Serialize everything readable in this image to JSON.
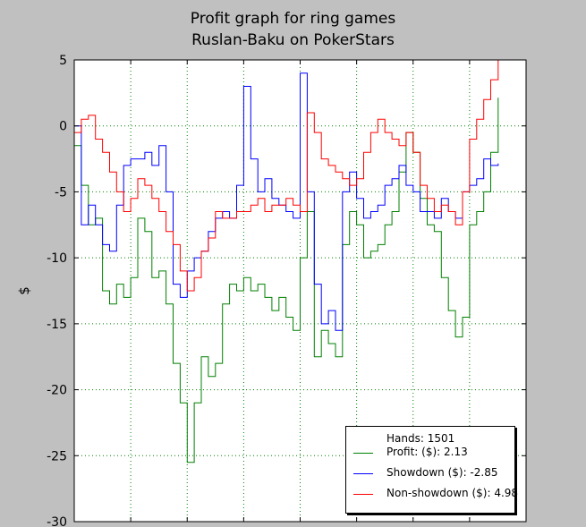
{
  "title": {
    "line1": "Profit graph for ring games",
    "line2": "Ruslan-Baku on PokerStars"
  },
  "colors": {
    "background": "#c0c0c0",
    "plot_background": "#ffffff",
    "grid": "#008000",
    "profit": "#008000",
    "showdown": "#0000ff",
    "non_showdown": "#ff0000"
  },
  "legend": {
    "hands": "Hands: 1501",
    "entries": [
      {
        "label": "Profit: ($): 2.13",
        "color": "#008000"
      },
      {
        "label": "Showdown ($): -2.85",
        "color": "#0000ff"
      },
      {
        "label": "Non-showdown ($): 4.98",
        "color": "#ff0000"
      }
    ]
  },
  "chart_data": {
    "type": "line",
    "title": "Profit graph for ring games\nRuslan-Baku on PokerStars",
    "xlabel": "",
    "ylabel": "$",
    "xlim": [
      0,
      1600
    ],
    "ylim": [
      -30,
      5
    ],
    "y_ticks": [
      "5",
      "0",
      "-5",
      "-10",
      "-15",
      "-20",
      "-25",
      "-30"
    ],
    "x_ticks": [
      0,
      200,
      400,
      600,
      800,
      1000,
      1200,
      1400,
      1600
    ],
    "x_tick_labels_visible": false,
    "grid": true,
    "legend_position": "bottom-right",
    "x": [
      0,
      25,
      50,
      75,
      100,
      125,
      150,
      175,
      200,
      225,
      250,
      275,
      300,
      325,
      350,
      375,
      400,
      425,
      450,
      475,
      500,
      525,
      550,
      575,
      600,
      625,
      650,
      675,
      700,
      725,
      750,
      775,
      800,
      825,
      850,
      875,
      900,
      925,
      950,
      975,
      1000,
      1025,
      1050,
      1075,
      1100,
      1125,
      1150,
      1175,
      1200,
      1225,
      1250,
      1275,
      1300,
      1325,
      1350,
      1375,
      1400,
      1425,
      1450,
      1475,
      1501
    ],
    "series": [
      {
        "name": "Profit: ($): 2.13",
        "color": "#008000",
        "values": [
          -1.5,
          -4.5,
          -7.5,
          -7.0,
          -12.5,
          -13.5,
          -12.0,
          -13.0,
          -11.5,
          -7.0,
          -8.0,
          -11.5,
          -11.0,
          -13.5,
          -18.0,
          -21.0,
          -25.5,
          -21.0,
          -17.5,
          -19.0,
          -18.0,
          -13.5,
          -12.0,
          -12.5,
          -11.5,
          -12.5,
          -12.0,
          -13.0,
          -14.0,
          -13.0,
          -14.5,
          -15.5,
          -10.0,
          -6.5,
          -17.5,
          -15.5,
          -16.5,
          -17.5,
          -9.0,
          -6.5,
          -7.5,
          -10.0,
          -9.5,
          -9.0,
          -7.5,
          -6.5,
          -3.5,
          -0.5,
          -2.0,
          -5.5,
          -7.5,
          -8.0,
          -11.5,
          -14.0,
          -16.0,
          -14.5,
          -7.5,
          -6.5,
          -5.0,
          -2.0,
          2.13
        ]
      },
      {
        "name": "Showdown ($): -2.85",
        "color": "#0000ff",
        "values": [
          0.0,
          -7.5,
          -6.0,
          -7.5,
          -9.0,
          -9.5,
          -6.0,
          -3.0,
          -2.5,
          -2.5,
          -2.0,
          -3.0,
          -1.5,
          -5.0,
          -12.0,
          -13.0,
          -11.0,
          -10.0,
          -9.5,
          -8.0,
          -7.0,
          -6.5,
          -7.0,
          -4.5,
          3.0,
          -2.5,
          -5.0,
          -4.0,
          -5.5,
          -6.0,
          -6.5,
          -7.0,
          4.0,
          -5.0,
          -12.0,
          -15.0,
          -14.0,
          -15.5,
          -5.0,
          -3.5,
          -5.5,
          -7.0,
          -6.5,
          -6.0,
          -4.5,
          -4.0,
          -3.0,
          -4.5,
          -5.0,
          -6.5,
          -6.5,
          -7.0,
          -5.5,
          -6.5,
          -7.0,
          -5.0,
          -4.5,
          -4.0,
          -2.5,
          -3.0,
          -2.85
        ]
      },
      {
        "name": "Non-showdown ($): 4.98",
        "color": "#ff0000",
        "values": [
          -0.5,
          0.5,
          0.8,
          -1.0,
          -2.0,
          -3.5,
          -5.0,
          -6.5,
          -5.5,
          -4.0,
          -4.5,
          -5.5,
          -6.5,
          -8.0,
          -9.0,
          -11.0,
          -12.5,
          -11.5,
          -9.5,
          -8.5,
          -6.5,
          -7.0,
          -7.0,
          -6.5,
          -6.5,
          -6.0,
          -5.5,
          -6.5,
          -6.0,
          -6.0,
          -5.5,
          -6.0,
          -6.5,
          1.0,
          -0.5,
          -2.5,
          -3.0,
          -3.5,
          -4.0,
          -4.5,
          -4.0,
          -2.0,
          -0.5,
          0.5,
          -0.5,
          -1.0,
          -1.5,
          -0.5,
          -2.0,
          -4.5,
          -5.5,
          -6.5,
          -6.0,
          -6.5,
          -7.5,
          -5.0,
          -1.0,
          0.5,
          2.0,
          3.5,
          4.98
        ]
      }
    ]
  }
}
